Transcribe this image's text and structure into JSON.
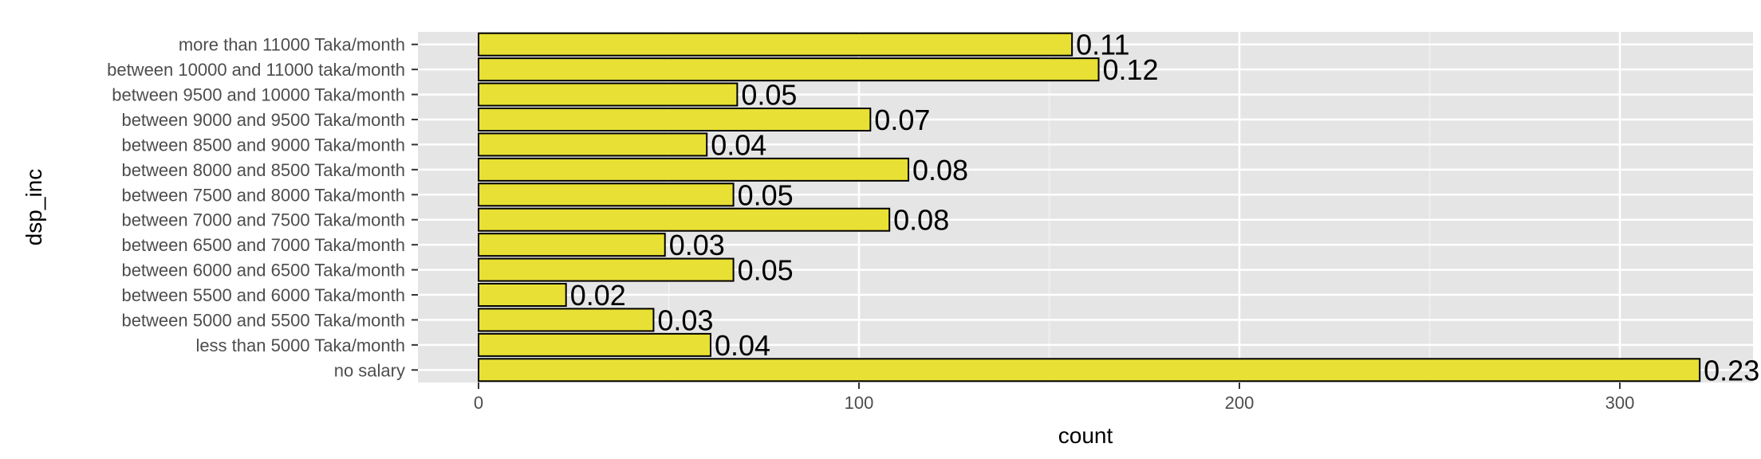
{
  "chart_data": {
    "type": "bar",
    "orientation": "horizontal",
    "xlabel": "count",
    "ylabel": "dsp_inc",
    "xlim": [
      -16,
      337
    ],
    "xticks": [
      0,
      100,
      200,
      300
    ],
    "grid": true,
    "categories": [
      "no salary",
      "less than 5000 Taka/month",
      "between 5000 and 5500 Taka/month",
      "between 5500 and 6000 Taka/month",
      "between 6000 and 6500 Taka/month",
      "between 6500 and 7000 Taka/month",
      "between 7000 and 7500 Taka/month",
      "between 7500 and 8000 Taka/month",
      "between 8000 and 8500 Taka/month",
      "between 8500 and 9000 Taka/month",
      "between 9000 and 9500 Taka/month",
      "between 9500 and 10000 Taka/month",
      "between 10000 and 11000 taka/month",
      "more than 11000 Taka/month"
    ],
    "values": [
      321,
      61,
      46,
      23,
      67,
      49,
      108,
      67,
      113,
      60,
      103,
      68,
      163,
      156
    ],
    "labels": [
      "0.23",
      "0.04",
      "0.03",
      "0.02",
      "0.05",
      "0.03",
      "0.08",
      "0.05",
      "0.08",
      "0.04",
      "0.07",
      "0.05",
      "0.12",
      "0.11"
    ],
    "colors": {
      "bar_fill": "#e8e034",
      "bar_stroke": "#000000",
      "panel_background": "#e5e5e5",
      "grid_major": "#ffffff",
      "grid_minor": "#f2f2f2"
    }
  }
}
